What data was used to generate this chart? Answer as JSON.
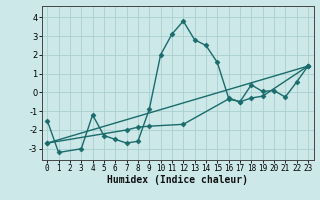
{
  "xlabel": "Humidex (Indice chaleur)",
  "background_color": "#cce8e8",
  "line_color": "#1a6b6b",
  "grid_color": "#aacfcf",
  "xlim": [
    -0.5,
    23.5
  ],
  "ylim": [
    -3.6,
    4.6
  ],
  "yticks": [
    -3,
    -2,
    -1,
    0,
    1,
    2,
    3,
    4
  ],
  "xticks": [
    0,
    1,
    2,
    3,
    4,
    5,
    6,
    7,
    8,
    9,
    10,
    11,
    12,
    13,
    14,
    15,
    16,
    17,
    18,
    19,
    20,
    21,
    22,
    23
  ],
  "series1_x": [
    0,
    1,
    3,
    4,
    5,
    6,
    7,
    8,
    9,
    10,
    11,
    12,
    13,
    14,
    15,
    16,
    17,
    18,
    19,
    20,
    21,
    22,
    23
  ],
  "series1_y": [
    -1.5,
    -3.2,
    -3.0,
    -1.2,
    -2.3,
    -2.5,
    -2.7,
    -2.6,
    -0.9,
    2.0,
    3.1,
    3.8,
    2.8,
    2.5,
    1.6,
    -0.3,
    -0.5,
    0.4,
    0.05,
    0.1,
    -0.25,
    0.55,
    1.4
  ],
  "series2_x": [
    0,
    23
  ],
  "series2_y": [
    -2.7,
    1.4
  ],
  "series3_x": [
    0,
    7,
    8,
    9,
    12,
    16,
    17,
    18,
    19,
    23
  ],
  "series3_y": [
    -2.7,
    -2.0,
    -1.85,
    -1.8,
    -1.7,
    -0.35,
    -0.5,
    -0.3,
    -0.2,
    1.4
  ],
  "marker": "D",
  "marker_size": 2.5,
  "line_width": 1.0,
  "tick_fontsize": 5.5,
  "xlabel_fontsize": 7
}
